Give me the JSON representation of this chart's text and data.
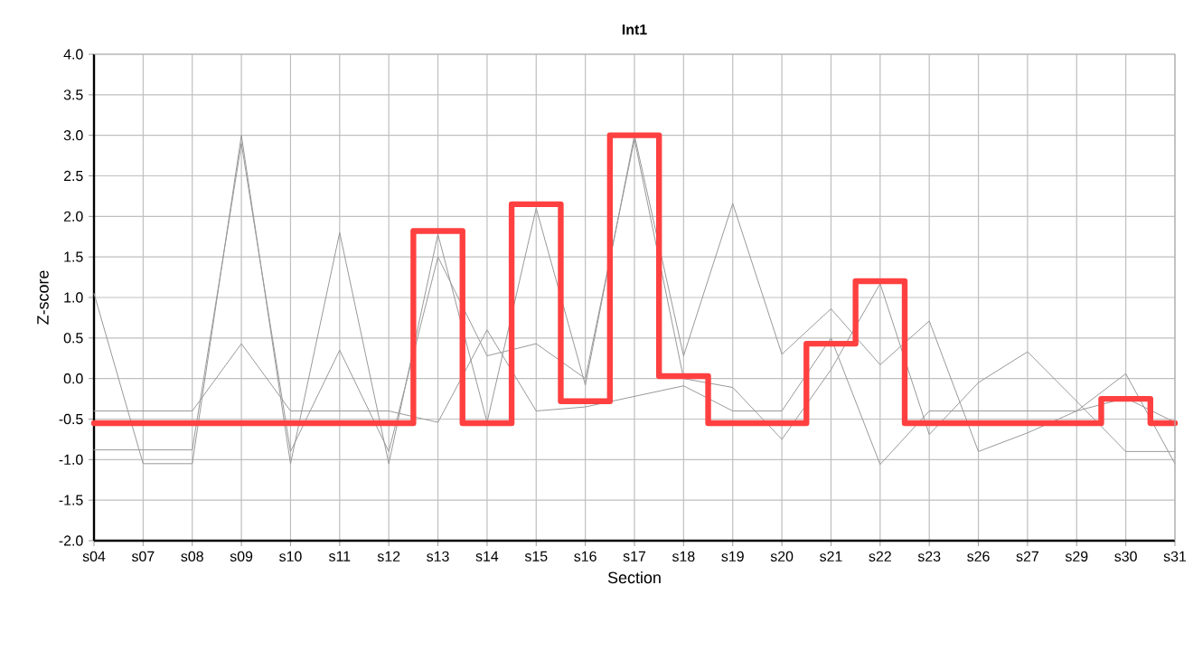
{
  "chart_data": {
    "type": "line",
    "title": "Int1",
    "xlabel": "Section",
    "ylabel": "Z-score",
    "categories": [
      "s04",
      "s07",
      "s08",
      "s09",
      "s10",
      "s11",
      "s12",
      "s13",
      "s14",
      "s15",
      "s16",
      "s17",
      "s18",
      "s19",
      "s20",
      "s21",
      "s22",
      "s23",
      "s26",
      "s27",
      "s29",
      "s30",
      "s31"
    ],
    "series": [
      {
        "color": "#999999",
        "values": [
          1.05,
          -1.05,
          -1.05,
          3.0,
          -1.05,
          1.8,
          -1.05,
          1.78,
          -0.54,
          2.1,
          -0.08,
          3.0,
          0.28,
          2.16,
          0.3,
          0.86,
          0.17,
          0.71,
          -0.9,
          -0.67,
          -0.4,
          0.06,
          -1.05
        ]
      },
      {
        "color": "#999999",
        "values": [
          -0.88,
          -0.88,
          -0.88,
          2.9,
          -0.9,
          0.35,
          -0.9,
          1.5,
          0.28,
          0.43,
          0.0,
          2.95,
          0.0,
          -0.11,
          -0.75,
          0.11,
          1.17,
          -0.69,
          -0.05,
          0.33,
          -0.28,
          -0.9,
          -0.9
        ]
      },
      {
        "color": "#999999",
        "values": [
          -0.4,
          -0.4,
          -0.4,
          0.43,
          -0.4,
          -0.4,
          -0.4,
          -0.54,
          0.6,
          -0.4,
          -0.35,
          -0.22,
          -0.09,
          -0.4,
          -0.4,
          0.5,
          -1.06,
          -0.4,
          -0.4,
          -0.4,
          -0.4,
          -0.24,
          -0.54
        ]
      },
      {
        "type": "step",
        "color": "#ff4040",
        "values": [
          -0.55,
          -0.55,
          -0.55,
          -0.55,
          -0.55,
          -0.55,
          -0.55,
          1.82,
          -0.55,
          2.15,
          -0.28,
          3.0,
          0.03,
          -0.55,
          -0.55,
          0.43,
          1.2,
          -0.55,
          -0.55,
          -0.55,
          -0.55,
          -0.25,
          -0.55
        ]
      }
    ],
    "ylim": [
      -2.0,
      4.0
    ],
    "yticks": [
      {
        "value": -2.0,
        "label": "-2.0"
      },
      {
        "value": -1.5,
        "label": "-1.5"
      },
      {
        "value": -1.0,
        "label": "-1.0"
      },
      {
        "value": -0.5,
        "label": "-0.5"
      },
      {
        "value": 0.0,
        "label": "0.0"
      },
      {
        "value": 0.5,
        "label": "0.5"
      },
      {
        "value": 1.0,
        "label": "1.0"
      },
      {
        "value": 1.5,
        "label": "1.5"
      },
      {
        "value": 2.0,
        "label": "2.0"
      },
      {
        "value": 2.5,
        "label": "2.5"
      },
      {
        "value": 3.0,
        "label": "3.0"
      },
      {
        "value": 3.5,
        "label": "3.5"
      },
      {
        "value": 4.0,
        "label": "4.0"
      }
    ],
    "grid": true,
    "marker": "none",
    "line_style": "solid"
  }
}
